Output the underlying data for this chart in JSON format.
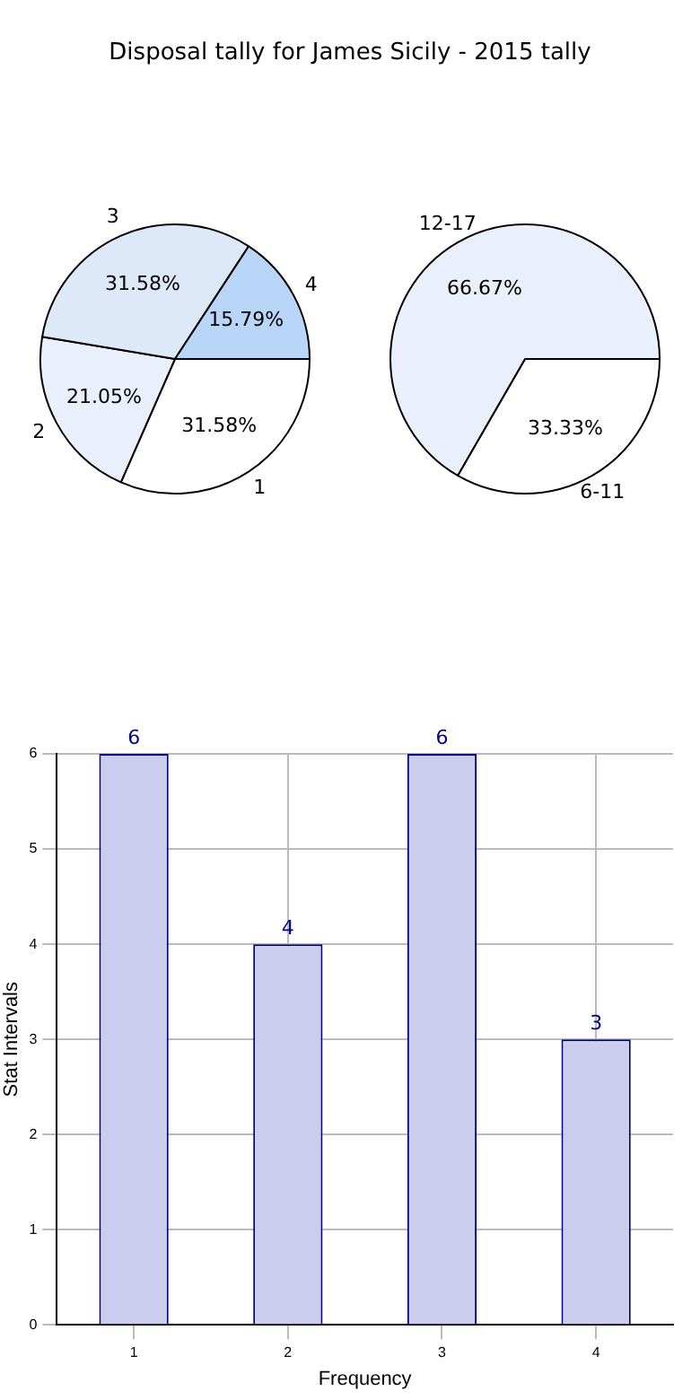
{
  "chart_data": [
    {
      "type": "pie",
      "title": "Disposal tally for James Sicily - 2015 tally",
      "categories": [
        "1",
        "2",
        "3",
        "4"
      ],
      "values": [
        31.58,
        21.05,
        31.58,
        15.79
      ],
      "value_labels": [
        "31.58%",
        "21.05%",
        "31.58%",
        "15.79%"
      ],
      "colors": [
        "#ffffff",
        "#eaf0fb",
        "#dde8f8",
        "#b9d5f7"
      ]
    },
    {
      "type": "pie",
      "categories": [
        "6-11",
        "12-17"
      ],
      "values": [
        33.33,
        66.67
      ],
      "value_labels": [
        "33.33%",
        "66.67%"
      ],
      "colors": [
        "#ffffff",
        "#eaf0fb"
      ]
    },
    {
      "type": "bar",
      "categories": [
        "1",
        "2",
        "3",
        "4"
      ],
      "values": [
        6,
        4,
        6,
        3
      ],
      "color": "#ccccee",
      "xlabel": "Frequency",
      "ylabel": "Stat Intervals",
      "ylim": [
        0,
        6
      ],
      "yticks": [
        0,
        1,
        2,
        3,
        4,
        5,
        6
      ],
      "grid": true,
      "data_labels": true
    }
  ]
}
